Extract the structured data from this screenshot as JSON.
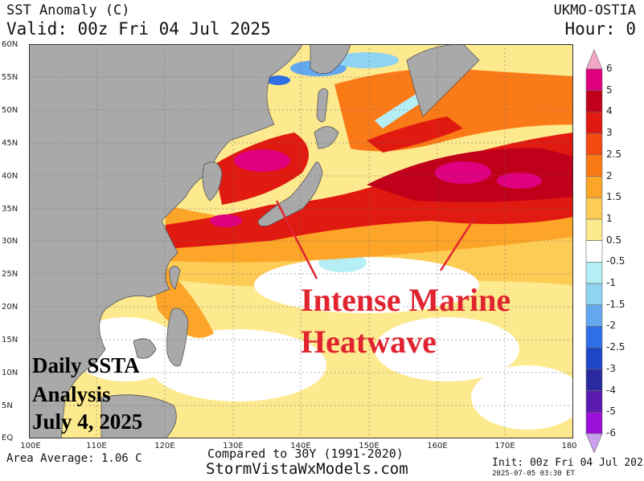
{
  "header": {
    "title": "SST Anomaly (C)",
    "valid": "Valid: 00z Fri 04 Jul 2025",
    "model": "UKMO-OSTIA",
    "hour": "Hour: 0"
  },
  "map": {
    "lat_labels": [
      "60N",
      "55N",
      "50N",
      "45N",
      "40N",
      "35N",
      "30N",
      "25N",
      "20N",
      "15N",
      "10N",
      "5N",
      "EQ"
    ],
    "lon_labels": [
      "100E",
      "110E",
      "120E",
      "130E",
      "140E",
      "150E",
      "160E",
      "170E",
      "180"
    ]
  },
  "colorbar": {
    "labels": [
      "6",
      "5",
      "4",
      "3",
      "2.5",
      "2",
      "1.5",
      "1",
      "0.5",
      "-0.5",
      "-1",
      "-1.5",
      "-2",
      "-2.5",
      "-3",
      "-4",
      "-5",
      "-6"
    ],
    "colors": [
      "#f4a6c8",
      "#e0007f",
      "#c0001a",
      "#e01a10",
      "#f24a10",
      "#fb7a18",
      "#fca528",
      "#fdcc55",
      "#fde98e",
      "#ffffff",
      "#b5eef5",
      "#8fd4f2",
      "#63a7ee",
      "#2f6fe6",
      "#1e46c8",
      "#2a2aa0",
      "#5a1ab0",
      "#9a10d8",
      "#c9a0f0"
    ],
    "land": "#a9a9a9"
  },
  "annotation": {
    "line1": "Intense Marine",
    "line2": "Heatwave",
    "color": "#e0242f"
  },
  "inset_text": {
    "line1": "Daily SSTA",
    "line2": "Analysis",
    "line3": "July 4, 2025"
  },
  "footer": {
    "area_average": "Area Average: 1.06 C",
    "compared": "Compared to 30Y (1991-2020)",
    "site": "StormVistaWxModels.com",
    "init": "Init: 00z Fri 04 Jul 2025",
    "issued": "2025-07-05 03:30 ET"
  }
}
